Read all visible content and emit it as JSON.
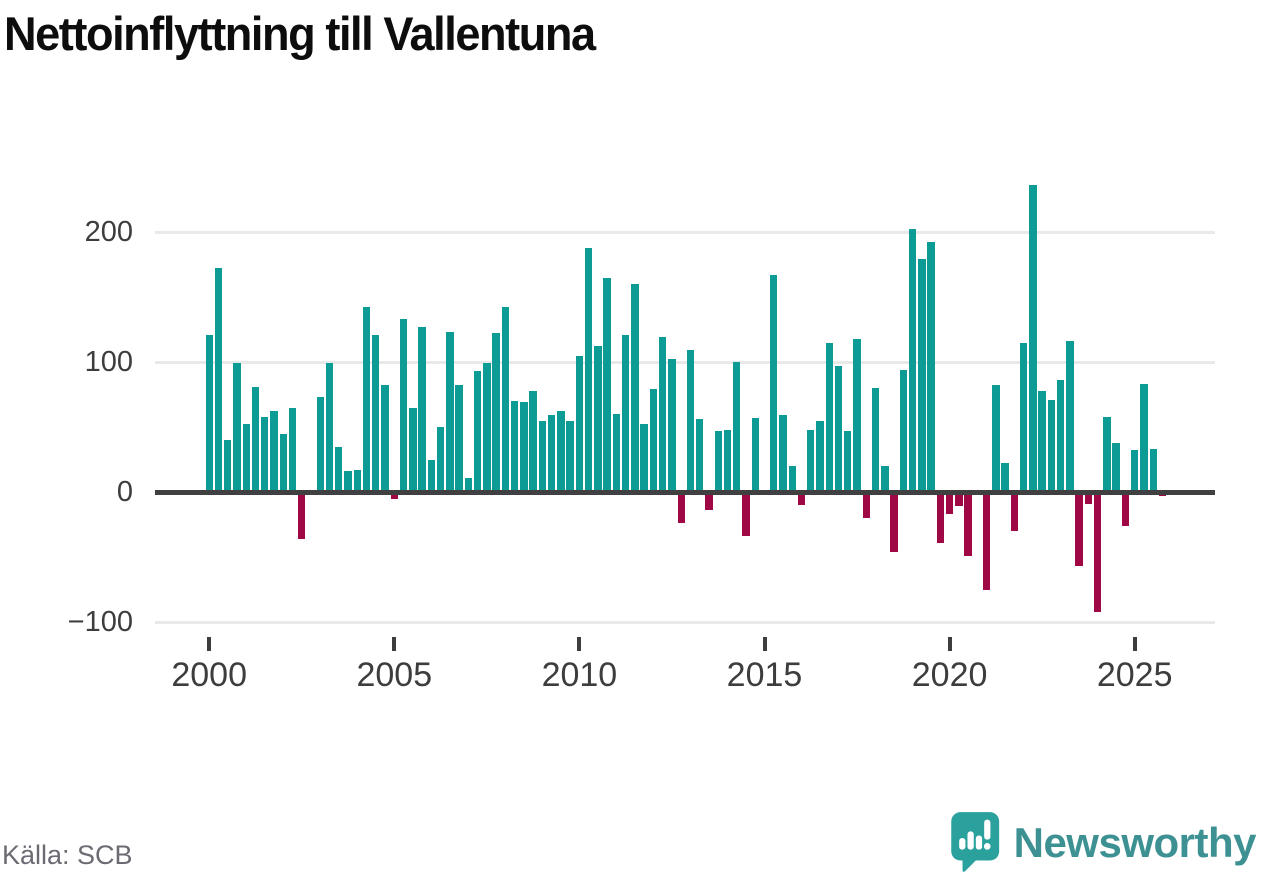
{
  "title": "Nettoinflyttning till Vallentuna",
  "source": "Källa: SCB",
  "brand": {
    "name": "Newsworthy",
    "logo_icon": "speech-bubble-bar-chart-exclamation"
  },
  "colors": {
    "positive_bar": "#0d9c95",
    "negative_bar": "#a00845",
    "axis": "#404040",
    "gridline": "#e9e9e9",
    "tick_text": "#3d3d3d",
    "source_text": "#6b6b74",
    "brand_text": "#3e9193",
    "brand_bubble": "#2ba19e",
    "title_text": "#0d0d0d"
  },
  "chart_data": {
    "type": "bar",
    "title": "Nettoinflyttning till Vallentuna",
    "xlabel": "",
    "ylabel": "",
    "x_start_year": 2000,
    "frequency": "quarterly",
    "x_tick_labels": [
      "2000",
      "2005",
      "2010",
      "2015",
      "2020",
      "2025"
    ],
    "y_tick_labels": [
      "200",
      "100",
      "0",
      "−100"
    ],
    "y_tick_values": [
      200,
      100,
      0,
      -100
    ],
    "ylim": [
      -130,
      255
    ],
    "grid": "horizontal",
    "legend": "none",
    "values": [
      121,
      172,
      40,
      99,
      52,
      81,
      58,
      62,
      45,
      65,
      -36,
      0,
      73,
      99,
      35,
      16,
      17,
      142,
      121,
      82,
      -5,
      133,
      65,
      127,
      25,
      50,
      123,
      82,
      11,
      93,
      99,
      122,
      142,
      70,
      69,
      78,
      55,
      59,
      62,
      55,
      105,
      188,
      112,
      165,
      60,
      121,
      160,
      52,
      79,
      119,
      102,
      -24,
      109,
      56,
      -14,
      47,
      48,
      100,
      -34,
      57,
      0,
      167,
      59,
      20,
      -10,
      48,
      55,
      115,
      97,
      47,
      118,
      -20,
      80,
      20,
      -46,
      94,
      202,
      179,
      192,
      -39,
      -17,
      -11,
      -49,
      0,
      -75,
      82,
      22,
      -30,
      115,
      236,
      78,
      71,
      86,
      116,
      -57,
      -9,
      -92,
      58,
      38,
      -26,
      32,
      83,
      33,
      -3
    ]
  }
}
